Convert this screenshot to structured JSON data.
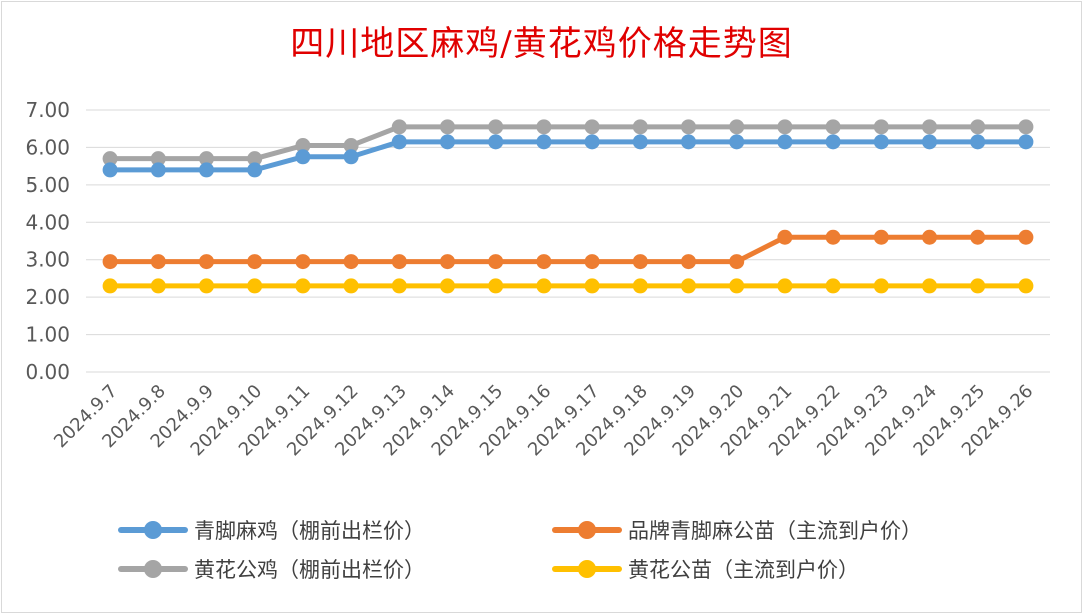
{
  "chart_data": {
    "type": "line",
    "title": "四川地区麻鸡/黄花鸡价格走势图",
    "categories": [
      "2024.9.7",
      "2024.9.8",
      "2024.9.9",
      "2024.9.10",
      "2024.9.11",
      "2024.9.12",
      "2024.9.13",
      "2024.9.14",
      "2024.9.15",
      "2024.9.16",
      "2024.9.17",
      "2024.9.18",
      "2024.9.19",
      "2024.9.20",
      "2024.9.21",
      "2024.9.22",
      "2024.9.23",
      "2024.9.24",
      "2024.9.25",
      "2024.9.26"
    ],
    "ylim": [
      0,
      7
    ],
    "yticks": [
      "0.00",
      "1.00",
      "2.00",
      "3.00",
      "4.00",
      "5.00",
      "6.00",
      "7.00"
    ],
    "grid": true,
    "legend_position": "bottom",
    "series": [
      {
        "name": "青脚麻鸡（棚前出栏价）",
        "color": "#5b9bd5",
        "values": [
          5.4,
          5.4,
          5.4,
          5.4,
          5.75,
          5.75,
          6.15,
          6.15,
          6.15,
          6.15,
          6.15,
          6.15,
          6.15,
          6.15,
          6.15,
          6.15,
          6.15,
          6.15,
          6.15,
          6.15
        ]
      },
      {
        "name": "品牌青脚麻公苗（主流到户价）",
        "color": "#ed7d31",
        "values": [
          2.95,
          2.95,
          2.95,
          2.95,
          2.95,
          2.95,
          2.95,
          2.95,
          2.95,
          2.95,
          2.95,
          2.95,
          2.95,
          2.95,
          3.6,
          3.6,
          3.6,
          3.6,
          3.6,
          3.6
        ]
      },
      {
        "name": "黄花公鸡（棚前出栏价）",
        "color": "#a5a5a5",
        "values": [
          5.7,
          5.7,
          5.7,
          5.7,
          6.05,
          6.05,
          6.55,
          6.55,
          6.55,
          6.55,
          6.55,
          6.55,
          6.55,
          6.55,
          6.55,
          6.55,
          6.55,
          6.55,
          6.55,
          6.55
        ]
      },
      {
        "name": "黄花公苗（主流到户价）",
        "color": "#ffc000",
        "values": [
          2.3,
          2.3,
          2.3,
          2.3,
          2.3,
          2.3,
          2.3,
          2.3,
          2.3,
          2.3,
          2.3,
          2.3,
          2.3,
          2.3,
          2.3,
          2.3,
          2.3,
          2.3,
          2.3,
          2.3
        ]
      }
    ]
  }
}
